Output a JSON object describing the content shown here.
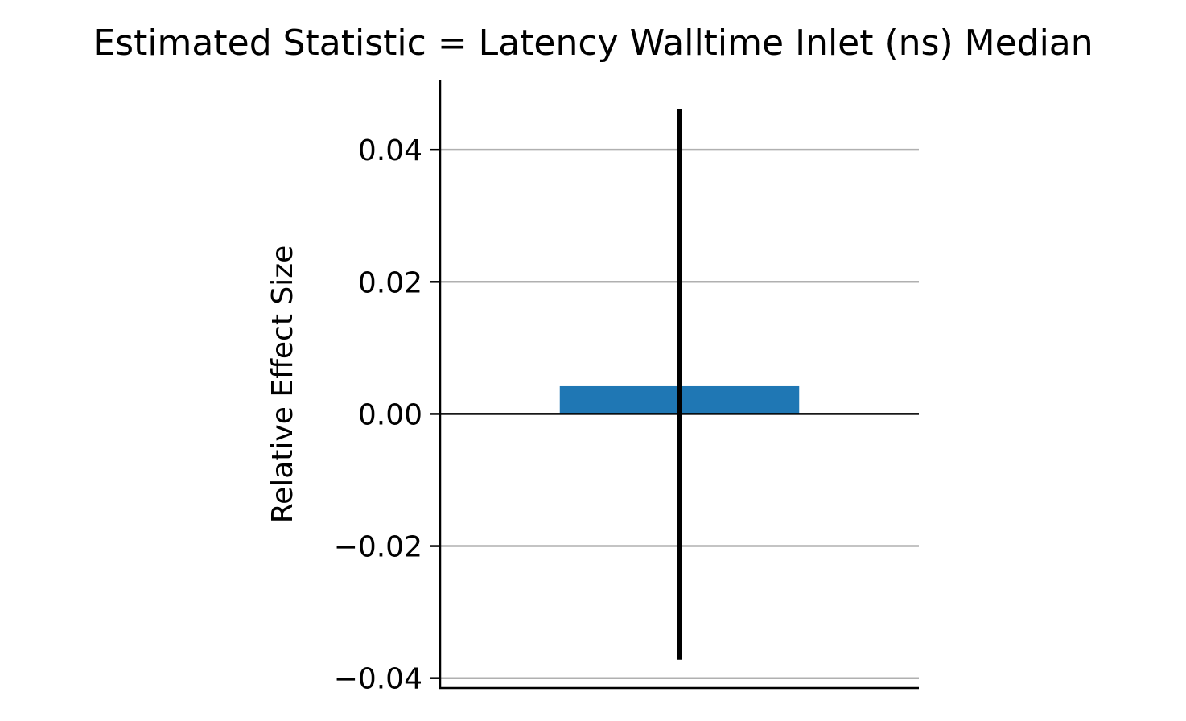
{
  "chart_data": {
    "type": "bar",
    "title": "Estimated Statistic = Latency Walltime Inlet (ns) Median",
    "xlabel": "",
    "ylabel": "Relative Effect Size",
    "categories": [
      ""
    ],
    "values": [
      0.0042
    ],
    "error_bars": [
      {
        "low": -0.0372,
        "high": 0.0462
      }
    ],
    "ylim": [
      -0.0415,
      0.0505
    ],
    "yticks": [
      -0.04,
      -0.02,
      0.0,
      0.02,
      0.04
    ],
    "ytick_labels": [
      "−0.04",
      "−0.02",
      "0.00",
      "0.02",
      "0.04"
    ],
    "grid": "horizontal",
    "legend": "none",
    "colors": {
      "bar": "#1f77b4",
      "error_bar": "#000000",
      "grid": "#b0b0b0",
      "axis": "#000000",
      "zero_line": "#000000"
    }
  }
}
